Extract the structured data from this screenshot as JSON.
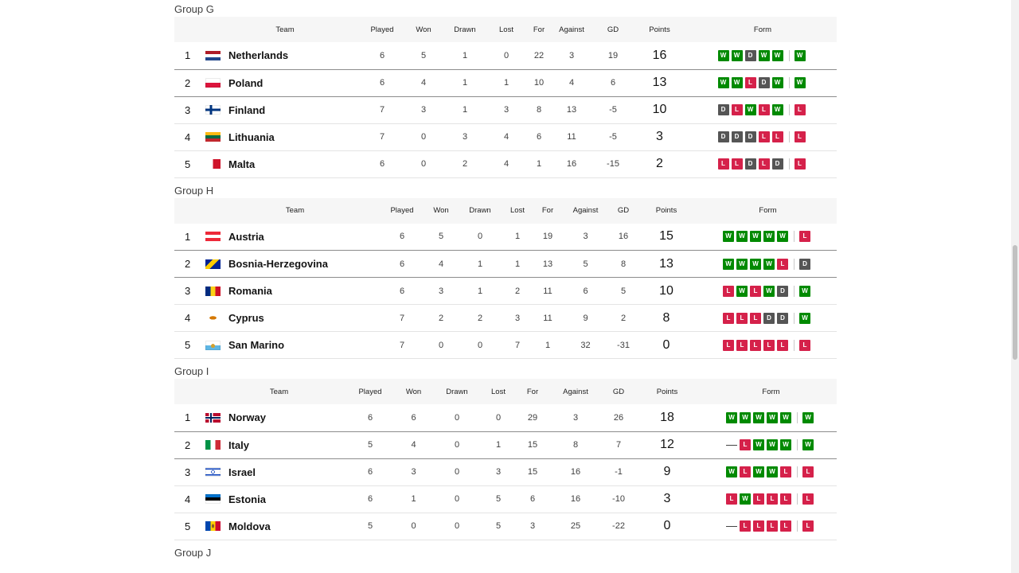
{
  "headers": {
    "team": "Team",
    "played": "Played",
    "won": "Won",
    "drawn": "Drawn",
    "lost": "Lost",
    "for": "For",
    "against": "Against",
    "gd": "GD",
    "points": "Points",
    "form": "Form"
  },
  "groups": [
    {
      "name": "Group G",
      "rows": [
        {
          "pos": "1",
          "team": "Netherlands",
          "flag": "netherlands-flag-icon",
          "played": "6",
          "won": "5",
          "drawn": "1",
          "lost": "0",
          "for": "22",
          "against": "3",
          "gd": "19",
          "points": "16",
          "form": [
            "W",
            "W",
            "D",
            "W",
            "W"
          ],
          "latest": "W"
        },
        {
          "pos": "2",
          "team": "Poland",
          "flag": "poland-flag-icon",
          "played": "6",
          "won": "4",
          "drawn": "1",
          "lost": "1",
          "for": "10",
          "against": "4",
          "gd": "6",
          "points": "13",
          "form": [
            "W",
            "W",
            "L",
            "D",
            "W"
          ],
          "latest": "W"
        },
        {
          "pos": "3",
          "team": "Finland",
          "flag": "finland-flag-icon",
          "played": "7",
          "won": "3",
          "drawn": "1",
          "lost": "3",
          "for": "8",
          "against": "13",
          "gd": "-5",
          "points": "10",
          "form": [
            "D",
            "L",
            "W",
            "L",
            "W"
          ],
          "latest": "L"
        },
        {
          "pos": "4",
          "team": "Lithuania",
          "flag": "lithuania-flag-icon",
          "played": "7",
          "won": "0",
          "drawn": "3",
          "lost": "4",
          "for": "6",
          "against": "11",
          "gd": "-5",
          "points": "3",
          "form": [
            "D",
            "D",
            "D",
            "L",
            "L"
          ],
          "latest": "L"
        },
        {
          "pos": "5",
          "team": "Malta",
          "flag": "malta-flag-icon",
          "played": "6",
          "won": "0",
          "drawn": "2",
          "lost": "4",
          "for": "1",
          "against": "16",
          "gd": "-15",
          "points": "2",
          "form": [
            "L",
            "L",
            "D",
            "L",
            "D"
          ],
          "latest": "L"
        }
      ]
    },
    {
      "name": "Group H",
      "rows": [
        {
          "pos": "1",
          "team": "Austria",
          "flag": "austria-flag-icon",
          "played": "6",
          "won": "5",
          "drawn": "0",
          "lost": "1",
          "for": "19",
          "against": "3",
          "gd": "16",
          "points": "15",
          "form": [
            "W",
            "W",
            "W",
            "W",
            "W"
          ],
          "latest": "L"
        },
        {
          "pos": "2",
          "team": "Bosnia-Herzegovina",
          "flag": "bosnia-flag-icon",
          "played": "6",
          "won": "4",
          "drawn": "1",
          "lost": "1",
          "for": "13",
          "against": "5",
          "gd": "8",
          "points": "13",
          "form": [
            "W",
            "W",
            "W",
            "W",
            "L"
          ],
          "latest": "D"
        },
        {
          "pos": "3",
          "team": "Romania",
          "flag": "romania-flag-icon",
          "played": "6",
          "won": "3",
          "drawn": "1",
          "lost": "2",
          "for": "11",
          "against": "6",
          "gd": "5",
          "points": "10",
          "form": [
            "L",
            "W",
            "L",
            "W",
            "D"
          ],
          "latest": "W"
        },
        {
          "pos": "4",
          "team": "Cyprus",
          "flag": "cyprus-flag-icon",
          "played": "7",
          "won": "2",
          "drawn": "2",
          "lost": "3",
          "for": "11",
          "against": "9",
          "gd": "2",
          "points": "8",
          "form": [
            "L",
            "L",
            "L",
            "D",
            "D"
          ],
          "latest": "W"
        },
        {
          "pos": "5",
          "team": "San Marino",
          "flag": "san-marino-flag-icon",
          "played": "7",
          "won": "0",
          "drawn": "0",
          "lost": "7",
          "for": "1",
          "against": "32",
          "gd": "-31",
          "points": "0",
          "form": [
            "L",
            "L",
            "L",
            "L",
            "L"
          ],
          "latest": "L"
        }
      ]
    },
    {
      "name": "Group I",
      "rows": [
        {
          "pos": "1",
          "team": "Norway",
          "flag": "norway-flag-icon",
          "played": "6",
          "won": "6",
          "drawn": "0",
          "lost": "0",
          "for": "29",
          "against": "3",
          "gd": "26",
          "points": "18",
          "form": [
            "W",
            "W",
            "W",
            "W",
            "W"
          ],
          "latest": "W"
        },
        {
          "pos": "2",
          "team": "Italy",
          "flag": "italy-flag-icon",
          "played": "5",
          "won": "4",
          "drawn": "0",
          "lost": "1",
          "for": "15",
          "against": "8",
          "gd": "7",
          "points": "12",
          "form": [
            "-",
            "L",
            "W",
            "W",
            "W"
          ],
          "latest": "W"
        },
        {
          "pos": "3",
          "team": "Israel",
          "flag": "israel-flag-icon",
          "played": "6",
          "won": "3",
          "drawn": "0",
          "lost": "3",
          "for": "15",
          "against": "16",
          "gd": "-1",
          "points": "9",
          "form": [
            "W",
            "L",
            "W",
            "W",
            "L"
          ],
          "latest": "L"
        },
        {
          "pos": "4",
          "team": "Estonia",
          "flag": "estonia-flag-icon",
          "played": "6",
          "won": "1",
          "drawn": "0",
          "lost": "5",
          "for": "6",
          "against": "16",
          "gd": "-10",
          "points": "3",
          "form": [
            "L",
            "W",
            "L",
            "L",
            "L"
          ],
          "latest": "L"
        },
        {
          "pos": "5",
          "team": "Moldova",
          "flag": "moldova-flag-icon",
          "played": "5",
          "won": "0",
          "drawn": "0",
          "lost": "5",
          "for": "3",
          "against": "25",
          "gd": "-22",
          "points": "0",
          "form": [
            "-",
            "L",
            "L",
            "L",
            "L"
          ],
          "latest": "L"
        }
      ]
    },
    {
      "name": "Group J",
      "rows": []
    }
  ],
  "colors": {
    "win": "#008a00",
    "draw": "#555555",
    "loss": "#d5214a",
    "header_bg": "#f6f6f6"
  }
}
